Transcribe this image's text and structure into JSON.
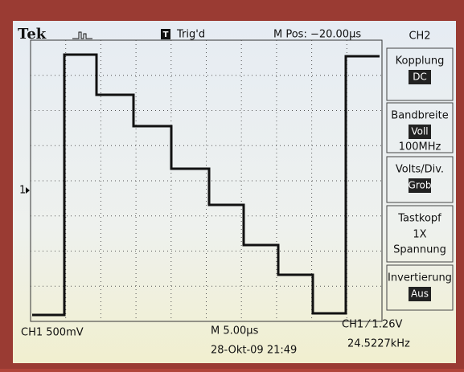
{
  "header": {
    "brand": "Tek",
    "trigger_icon": "T",
    "trigger_status": "Trig'd",
    "position": "M Pos: −20.00µs"
  },
  "menu": {
    "title": "CH2",
    "items": [
      {
        "label": "Kopplung",
        "value": "DC"
      },
      {
        "label": "Bandbreite",
        "value": "Voll",
        "extra": "100MHz"
      },
      {
        "label": "Volts/Div.",
        "value": "Grob"
      },
      {
        "label": "Tastkopf",
        "value": "1X",
        "extra": "Spannung"
      },
      {
        "label": "Invertierung",
        "value": "Aus"
      }
    ]
  },
  "markers": {
    "channel": "1"
  },
  "footer": {
    "channel_scale": "CH1  500mV",
    "time_scale": "M 5.00µs",
    "timestamp": "28-Okt-09 21:49",
    "trigger": "CH1 ⁄ 1.26V",
    "frequency": "24.5227kHz"
  }
}
